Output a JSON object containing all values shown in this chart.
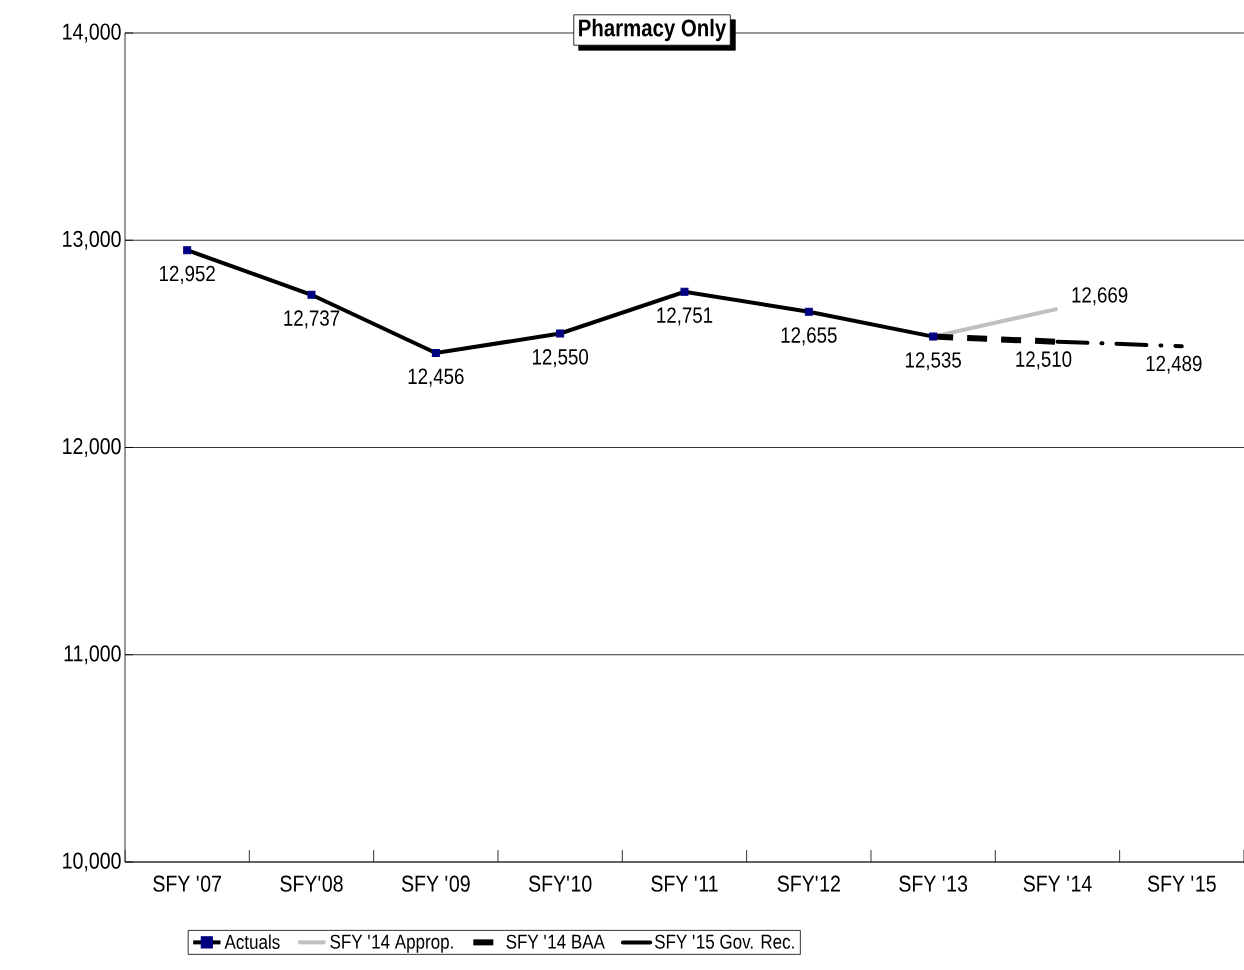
{
  "chart_data": {
    "type": "line",
    "title": "Pharmacy Only",
    "categories": [
      "SFY '07",
      "SFY'08",
      "SFY '09",
      "SFY'10",
      "SFY '11",
      "SFY'12",
      "SFY '13",
      "SFY '14",
      "SFY '15"
    ],
    "series": [
      {
        "name": "Actuals",
        "color": "#000000",
        "marker": "square",
        "line_style": "solid",
        "values": [
          12952,
          12737,
          12456,
          12550,
          12751,
          12655,
          12535,
          null,
          null
        ],
        "value_labels": [
          "12,952",
          "12,737",
          "12,456",
          "12,550",
          "12,751",
          "12,655",
          "12,535",
          null,
          null
        ]
      },
      {
        "name": "SFY '14 Approp.",
        "color": "#c0c0c0",
        "line_style": "solid",
        "values": [
          null,
          null,
          null,
          null,
          null,
          null,
          12535,
          12669,
          null
        ],
        "value_labels": [
          null,
          null,
          null,
          null,
          null,
          null,
          null,
          "12,669",
          null
        ]
      },
      {
        "name": "SFY '14 BAA",
        "color": "#000000",
        "line_style": "dashed",
        "values": [
          null,
          null,
          null,
          null,
          null,
          null,
          12535,
          12510,
          null
        ],
        "value_labels": [
          null,
          null,
          null,
          null,
          null,
          null,
          null,
          "12,510",
          null
        ]
      },
      {
        "name": "SFY '15 Gov. Rec.",
        "color": "#000000",
        "line_style": "dotted",
        "values": [
          null,
          null,
          null,
          null,
          null,
          null,
          null,
          12510,
          12489
        ],
        "value_labels": [
          null,
          null,
          null,
          null,
          null,
          null,
          null,
          null,
          "12,489"
        ]
      }
    ],
    "ylim": [
      10000,
      14000
    ],
    "yticks": [
      {
        "value": 10000,
        "label": "10,000"
      },
      {
        "value": 11000,
        "label": "11,000"
      },
      {
        "value": 12000,
        "label": "12,000"
      },
      {
        "value": 13000,
        "label": "13,000"
      },
      {
        "value": 14000,
        "label": "14,000"
      }
    ],
    "grid": "y",
    "legend": "bottom"
  }
}
